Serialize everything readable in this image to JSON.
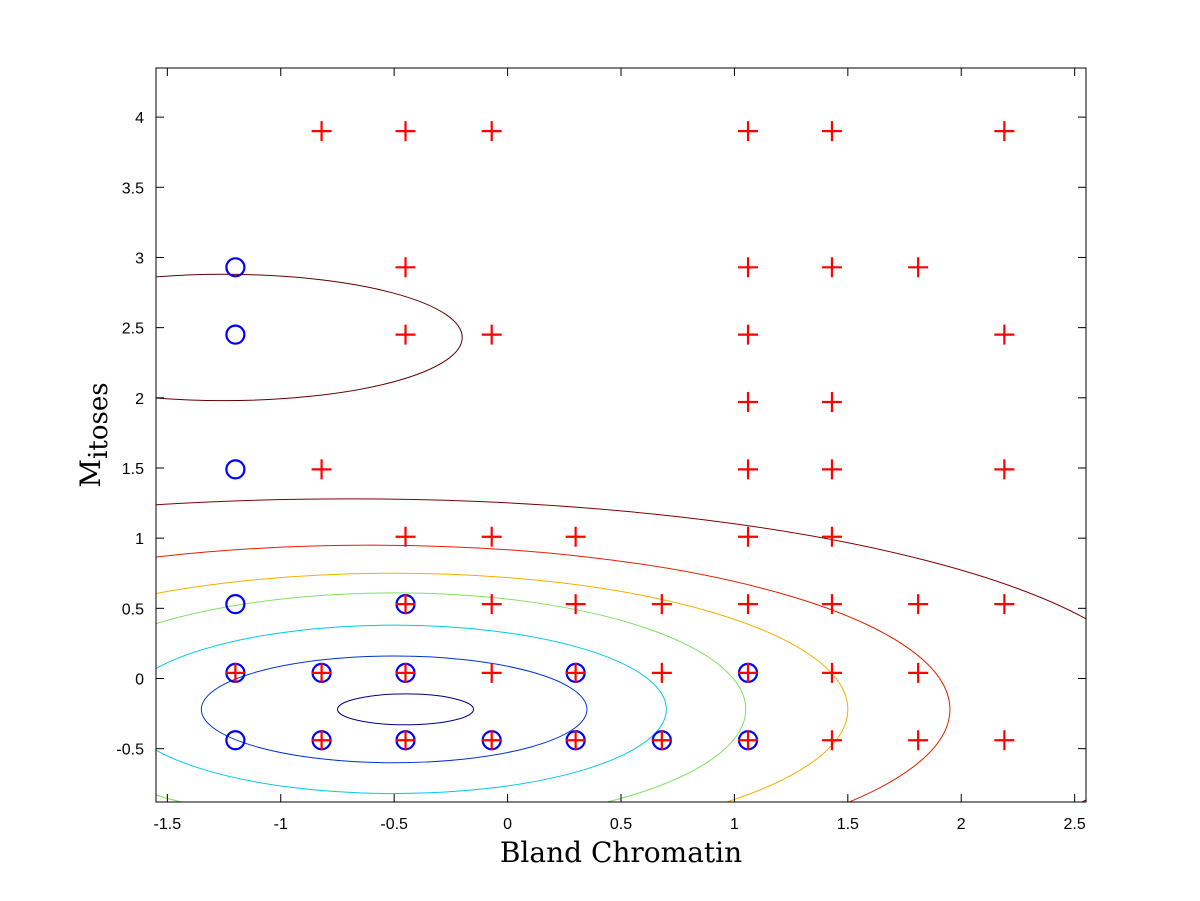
{
  "chart_data": {
    "type": "scatter",
    "title": "",
    "xlabel": "Bland Chromatin",
    "ylabel_main": "M",
    "ylabel_sub": "itoses",
    "xlim": [
      -1.55,
      2.55
    ],
    "ylim": [
      -0.88,
      4.35
    ],
    "xticks": [
      -1.5,
      -1,
      -0.5,
      0,
      0.5,
      1,
      1.5,
      2,
      2.5
    ],
    "yticks": [
      -0.5,
      0,
      0.5,
      1,
      1.5,
      2,
      2.5,
      3,
      3.5,
      4
    ],
    "xtick_labels": [
      "-1.5",
      "-1",
      "-0.5",
      "0",
      "0.5",
      "1",
      "1.5",
      "2",
      "2.5"
    ],
    "ytick_labels": [
      "-0.5",
      "0",
      "0.5",
      "1",
      "1.5",
      "2",
      "2.5",
      "3",
      "3.5",
      "4"
    ],
    "grid": false,
    "series": [
      {
        "marker": "circle",
        "color": "#0000ff",
        "points": [
          [
            -1.2,
            2.93
          ],
          [
            -1.2,
            2.45
          ],
          [
            -1.2,
            1.49
          ],
          [
            -1.2,
            0.53
          ],
          [
            -1.2,
            0.04
          ],
          [
            -1.2,
            -0.44
          ],
          [
            -0.82,
            0.04
          ],
          [
            -0.82,
            -0.44
          ],
          [
            -0.45,
            0.53
          ],
          [
            -0.45,
            0.04
          ],
          [
            -0.45,
            -0.44
          ],
          [
            -0.07,
            -0.44
          ],
          [
            0.3,
            0.04
          ],
          [
            0.3,
            -0.44
          ],
          [
            0.68,
            -0.44
          ],
          [
            1.06,
            0.04
          ],
          [
            1.06,
            -0.44
          ]
        ]
      },
      {
        "marker": "plus",
        "color": "#ff0000",
        "points": [
          [
            -0.82,
            3.9
          ],
          [
            -0.45,
            3.9
          ],
          [
            -0.07,
            3.9
          ],
          [
            1.06,
            3.9
          ],
          [
            1.43,
            3.9
          ],
          [
            2.19,
            3.9
          ],
          [
            -0.45,
            2.93
          ],
          [
            1.06,
            2.93
          ],
          [
            1.43,
            2.93
          ],
          [
            1.81,
            2.93
          ],
          [
            -0.45,
            2.45
          ],
          [
            -0.07,
            2.45
          ],
          [
            1.06,
            2.45
          ],
          [
            2.19,
            2.45
          ],
          [
            1.06,
            1.97
          ],
          [
            1.43,
            1.97
          ],
          [
            -0.82,
            1.49
          ],
          [
            1.06,
            1.49
          ],
          [
            1.43,
            1.49
          ],
          [
            2.19,
            1.49
          ],
          [
            -0.45,
            1.01
          ],
          [
            -0.07,
            1.01
          ],
          [
            0.3,
            1.01
          ],
          [
            1.06,
            1.01
          ],
          [
            1.43,
            1.01
          ],
          [
            -0.45,
            0.53
          ],
          [
            -0.07,
            0.53
          ],
          [
            0.3,
            0.53
          ],
          [
            0.68,
            0.53
          ],
          [
            1.06,
            0.53
          ],
          [
            1.43,
            0.53
          ],
          [
            1.81,
            0.53
          ],
          [
            2.19,
            0.53
          ],
          [
            -1.2,
            0.04
          ],
          [
            -0.82,
            0.04
          ],
          [
            -0.45,
            0.04
          ],
          [
            -0.07,
            0.04
          ],
          [
            0.3,
            0.04
          ],
          [
            0.68,
            0.04
          ],
          [
            1.06,
            0.04
          ],
          [
            1.43,
            0.04
          ],
          [
            1.81,
            0.04
          ],
          [
            -0.82,
            -0.44
          ],
          [
            -0.45,
            -0.44
          ],
          [
            -0.07,
            -0.44
          ],
          [
            0.3,
            -0.44
          ],
          [
            0.68,
            -0.44
          ],
          [
            1.06,
            -0.44
          ],
          [
            1.43,
            -0.44
          ],
          [
            1.81,
            -0.44
          ],
          [
            2.19,
            -0.44
          ]
        ]
      }
    ],
    "contours": [
      {
        "color": "#000080",
        "center": [
          -0.45,
          -0.22
        ],
        "rx": 0.3,
        "ry": 0.11
      },
      {
        "color": "#0033cc",
        "center": [
          -0.5,
          -0.22
        ],
        "rx": 0.85,
        "ry": 0.38
      },
      {
        "color": "#00c8e6",
        "center": [
          -0.5,
          -0.22
        ],
        "rx": 1.2,
        "ry": 0.6
      },
      {
        "color": "#80e060",
        "center": [
          -0.5,
          -0.22
        ],
        "rx": 1.55,
        "ry": 0.83
      },
      {
        "color": "#f0b000",
        "center": [
          -0.5,
          -0.22
        ],
        "rx": 2.0,
        "ry": 0.97
      },
      {
        "color": "#e02000",
        "center": [
          -0.6,
          -0.22
        ],
        "rx": 2.55,
        "ry": 1.17
      },
      {
        "color": "#800000",
        "center": [
          -0.7,
          -0.22
        ],
        "rx": 3.6,
        "ry": 1.5
      },
      {
        "color": "#600000",
        "center": [
          -1.25,
          2.43
        ],
        "rx": 1.05,
        "ry": 0.45
      }
    ]
  }
}
